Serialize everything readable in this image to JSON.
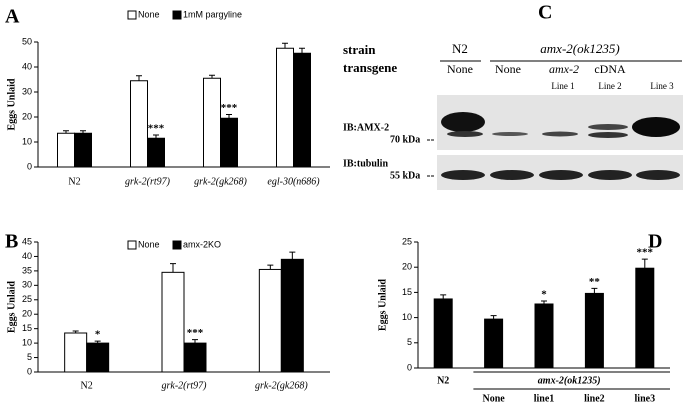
{
  "chart_data": [
    {
      "panel": "A",
      "type": "bar",
      "y_label": "Eggs Unlaid",
      "categories": [
        "N2",
        "grk-2(rt97)",
        "grk-2(gk268)",
        "egl-30(n686)"
      ],
      "series": [
        {
          "name": "None",
          "color": "#ffffff",
          "values": [
            13.5,
            34.5,
            35.5,
            47.5
          ],
          "errors": [
            1,
            2,
            1.2,
            2
          ]
        },
        {
          "name": "1mM pargyline",
          "color": "#000000",
          "values": [
            13.5,
            11.5,
            19.5,
            45.5
          ],
          "errors": [
            1,
            1.3,
            1.5,
            2
          ]
        }
      ],
      "annotations": [
        null,
        "***",
        "***",
        null
      ],
      "ylim": [
        0,
        50
      ],
      "yticks": [
        0,
        10,
        20,
        30,
        40,
        50
      ]
    },
    {
      "panel": "B",
      "type": "bar",
      "y_label": "Eggs Unlaid",
      "categories": [
        "N2",
        "grk-2(rt97)",
        "grk-2(gk268)"
      ],
      "series": [
        {
          "name": "None",
          "color": "#ffffff",
          "values": [
            13.5,
            34.5,
            35.5
          ],
          "errors": [
            0.7,
            3,
            1.5
          ]
        },
        {
          "name": "amx-2KO",
          "color": "#000000",
          "values": [
            10,
            10,
            39
          ],
          "errors": [
            0.7,
            1.2,
            2.5
          ]
        }
      ],
      "annotations": [
        "*",
        "***",
        null
      ],
      "ylim": [
        0,
        45
      ],
      "yticks": [
        0,
        5,
        10,
        15,
        20,
        25,
        30,
        35,
        40,
        45
      ]
    },
    {
      "panel": "D",
      "type": "bar",
      "y_label": "Eggs Unlaid",
      "categories": [
        "N2",
        "None",
        "line1",
        "line2",
        "line3"
      ],
      "group_label": "amx-2(ok1235)",
      "values": [
        13.7,
        9.7,
        12.7,
        14.8,
        19.8
      ],
      "errors": [
        0.8,
        0.7,
        0.6,
        1,
        1.8
      ],
      "color": "#000000",
      "annotations": [
        null,
        null,
        "*",
        "**",
        "***"
      ],
      "ylim": [
        0,
        25
      ],
      "yticks": [
        0,
        5,
        10,
        15,
        20,
        25
      ]
    }
  ],
  "blot": {
    "panel": "C",
    "row_labels": [
      "strain",
      "transgene"
    ],
    "strains": [
      "N2",
      "amx-2(ok1235)"
    ],
    "transgenes": [
      "None",
      "None"
    ],
    "cdna": [
      "amx-2",
      "cDNA"
    ],
    "lines": [
      "Line 1",
      "Line 2",
      "Line 3"
    ],
    "blots": [
      {
        "label": "IB:AMX-2",
        "marker": "70 kDa"
      },
      {
        "label": "IB:tubulin",
        "marker": "55 kDa"
      }
    ]
  }
}
